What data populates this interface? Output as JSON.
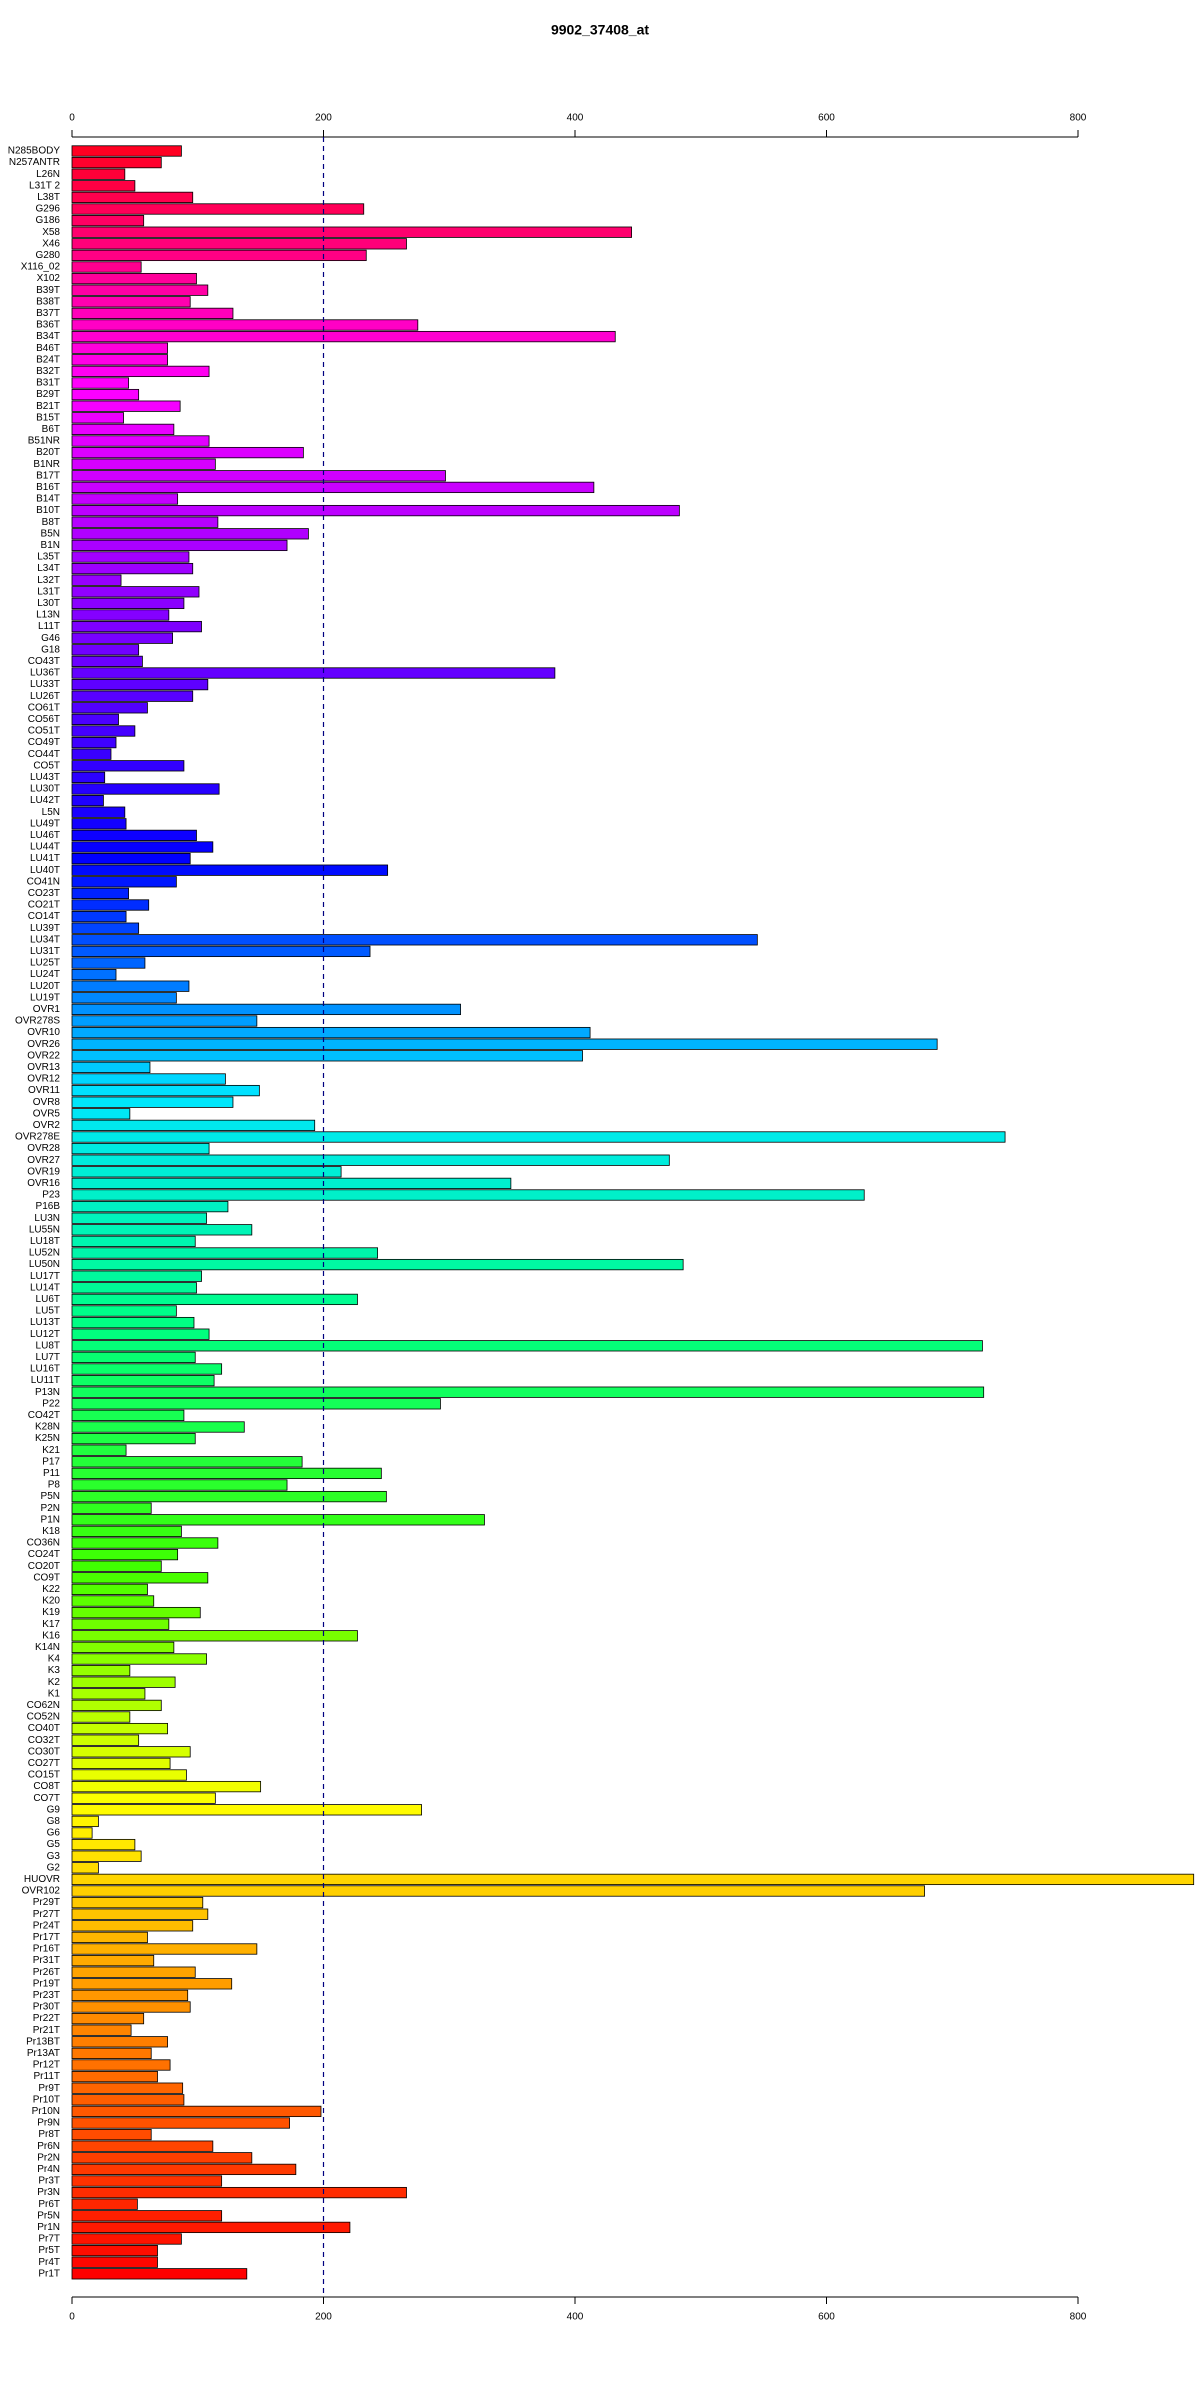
{
  "chart_data": {
    "type": "barh",
    "title": "9902_37408_at",
    "categories": [
      "N285BODY",
      "N257ANTR",
      "L26N",
      "L31T 2",
      "L38T",
      "G296",
      "G186",
      "X58",
      "X46",
      "G280",
      "X116_02",
      "X102",
      "B39T",
      "B38T",
      "B37T",
      "B36T",
      "B34T",
      "B46T",
      "B24T",
      "B32T",
      "B31T",
      "B29T",
      "B21T",
      "B15T",
      "B6T",
      "B51NR",
      "B20T",
      "B1NR",
      "B17T",
      "B16T",
      "B14T",
      "B10T",
      "B8T",
      "B5N",
      "B1N",
      "L35T",
      "L34T",
      "L32T",
      "L31T",
      "L30T",
      "L13N",
      "L11T",
      "G46",
      "G18",
      "CO43T",
      "LU36T",
      "LU33T",
      "LU26T",
      "CO61T",
      "CO56T",
      "CO51T",
      "CO49T",
      "CO44T",
      "CO5T",
      "LU43T",
      "LU30T",
      "LU42T",
      "L5N",
      "LU49T",
      "LU46T",
      "LU44T",
      "LU41T",
      "LU40T",
      "CO41N",
      "CO23T",
      "CO21T",
      "CO14T",
      "LU39T",
      "LU34T",
      "LU31T",
      "LU25T",
      "LU24T",
      "LU20T",
      "LU19T",
      "OVR1",
      "OVR278S",
      "OVR10",
      "OVR26",
      "OVR22",
      "OVR13",
      "OVR12",
      "OVR11",
      "OVR8",
      "OVR5",
      "OVR2",
      "OVR278E",
      "OVR28",
      "OVR27",
      "OVR19",
      "OVR16",
      "P23",
      "P16B",
      "LU3N",
      "LU55N",
      "LU18T",
      "LU52N",
      "LU50N",
      "LU17T",
      "LU14T",
      "LU6T",
      "LU5T",
      "LU13T",
      "LU12T",
      "LU8T",
      "LU7T",
      "LU16T",
      "LU11T",
      "P13N",
      "P22",
      "CO42T",
      "K28N",
      "K25N",
      "K21",
      "P17",
      "P11",
      "P8",
      "P5N",
      "P2N",
      "P1N",
      "K18",
      "CO36N",
      "CO24T",
      "CO20T",
      "CO9T",
      "K22",
      "K20",
      "K19",
      "K17",
      "K16",
      "K14N",
      "K4",
      "K3",
      "K2",
      "K1",
      "CO62N",
      "CO52N",
      "CO40T",
      "CO32T",
      "CO30T",
      "CO27T",
      "CO15T",
      "CO8T",
      "CO7T",
      "G9",
      "G8",
      "G6",
      "G5",
      "G3",
      "G2",
      "HUOVR",
      "OVR102",
      "Pr29T",
      "Pr27T",
      "Pr24T",
      "Pr17T",
      "Pr16T",
      "Pr31T",
      "Pr26T",
      "Pr19T",
      "Pr23T",
      "Pr30T",
      "Pr22T",
      "Pr21T",
      "Pr13BT",
      "Pr13AT",
      "Pr12T",
      "Pr11T",
      "Pr9T",
      "Pr10T",
      "Pr10N",
      "Pr9N",
      "Pr8T",
      "Pr6N",
      "Pr2N",
      "Pr4N",
      "Pr3T",
      "Pr3N",
      "Pr6T",
      "Pr5N",
      "Pr1N",
      "Pr7T",
      "Pr5T",
      "Pr4T",
      "Pr1T"
    ],
    "values": [
      87,
      71,
      42,
      50,
      96,
      232,
      57,
      445,
      266,
      234,
      55,
      99,
      108,
      94,
      128,
      275,
      432,
      76,
      76,
      109,
      45,
      53,
      86,
      41,
      81,
      109,
      184,
      114,
      297,
      415,
      84,
      483,
      116,
      188,
      171,
      93,
      96,
      39,
      101,
      89,
      77,
      103,
      80,
      53,
      56,
      384,
      108,
      96,
      60,
      37,
      50,
      35,
      31,
      89,
      26,
      117,
      25,
      42,
      43,
      99,
      112,
      94,
      251,
      83,
      45,
      61,
      43,
      53,
      545,
      237,
      58,
      35,
      93,
      83,
      309,
      147,
      412,
      688,
      406,
      62,
      122,
      149,
      128,
      46,
      193,
      742,
      109,
      475,
      214,
      349,
      630,
      124,
      107,
      143,
      98,
      243,
      486,
      103,
      99,
      227,
      83,
      97,
      109,
      724,
      98,
      119,
      113,
      725,
      293,
      89,
      137,
      98,
      43,
      183,
      246,
      171,
      250,
      63,
      328,
      87,
      116,
      84,
      71,
      108,
      60,
      65,
      102,
      77,
      227,
      81,
      107,
      46,
      82,
      58,
      71,
      46,
      76,
      53,
      94,
      78,
      91,
      150,
      114,
      278,
      21,
      16,
      50,
      55,
      21,
      892,
      678,
      104,
      108,
      96,
      60,
      147,
      65,
      98,
      127,
      92,
      94,
      57,
      47,
      76,
      63,
      78,
      68,
      88,
      89,
      198,
      173,
      63,
      112,
      143,
      178,
      119,
      266,
      52,
      119,
      221,
      87,
      68,
      68,
      139
    ],
    "color_stops": [
      "#ff0022",
      "#ff00ff",
      "#8000ff",
      "#0000ff",
      "#00e5ff",
      "#00ff80",
      "#40ff00",
      "#ffff00",
      "#ff8000",
      "#ff0000"
    ],
    "xlim": [
      0,
      800
    ],
    "xticks": [
      0,
      200,
      400,
      600,
      800
    ],
    "vline": 200
  }
}
